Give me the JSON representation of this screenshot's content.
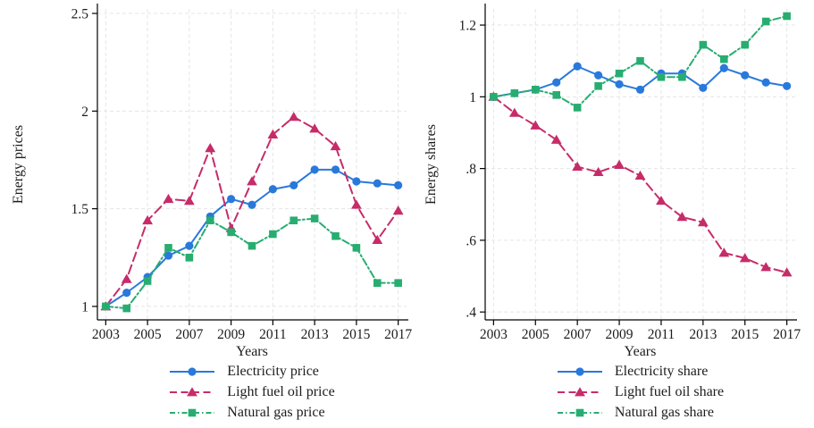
{
  "figure": {
    "colors": {
      "electricity_blue": "#2979DB",
      "fuel_oil_crimson": "#C62C69",
      "natural_gas_green": "#28AD71",
      "grid": "#E5E5E5",
      "axis": "#000000",
      "text": "#1C1C1C",
      "background": "#FFFFFF"
    }
  },
  "chart_data": [
    {
      "type": "line",
      "panel": "left",
      "title": "",
      "xlabel": "Years",
      "ylabel": "Energy prices",
      "x": [
        2003,
        2004,
        2005,
        2006,
        2007,
        2008,
        2009,
        2010,
        2011,
        2012,
        2013,
        2014,
        2015,
        2016,
        2017
      ],
      "xticks": [
        2003,
        2005,
        2007,
        2009,
        2011,
        2013,
        2015,
        2017
      ],
      "xtick_labels": [
        "2003",
        "2005",
        "2007",
        "2009",
        "2011",
        "2013",
        "2015",
        "2017"
      ],
      "xlim": [
        2002.6,
        2017.4
      ],
      "ylim": [
        0.931,
        2.523
      ],
      "yticks": [
        1,
        1.5,
        2,
        2.5
      ],
      "ytick_labels": [
        "1",
        "1.5",
        "2",
        "2.5"
      ],
      "grid": true,
      "legend_position": "bottom",
      "series": [
        {
          "name": "Electricity price",
          "color": "#2979DB",
          "marker": "circle",
          "dash": "solid",
          "values": [
            1.0,
            1.07,
            1.15,
            1.26,
            1.31,
            1.46,
            1.55,
            1.52,
            1.6,
            1.62,
            1.7,
            1.7,
            1.64,
            1.63,
            1.62
          ]
        },
        {
          "name": "Light fuel oil price",
          "color": "#C62C69",
          "marker": "triangle",
          "dash": "dashed",
          "values": [
            1.0,
            1.14,
            1.44,
            1.55,
            1.54,
            1.81,
            1.4,
            1.64,
            1.88,
            1.97,
            1.91,
            1.82,
            1.52,
            1.34,
            1.49
          ]
        },
        {
          "name": "Natural gas price",
          "color": "#28AD71",
          "marker": "square",
          "dash": "dashdot",
          "values": [
            1.0,
            0.99,
            1.13,
            1.3,
            1.25,
            1.44,
            1.38,
            1.31,
            1.37,
            1.44,
            1.45,
            1.36,
            1.3,
            1.12,
            1.12
          ]
        }
      ]
    },
    {
      "type": "line",
      "panel": "right",
      "title": "",
      "xlabel": "Years",
      "ylabel": "Energy shares",
      "x": [
        2003,
        2004,
        2005,
        2006,
        2007,
        2008,
        2009,
        2010,
        2011,
        2012,
        2013,
        2014,
        2015,
        2016,
        2017
      ],
      "xticks": [
        2003,
        2005,
        2007,
        2009,
        2011,
        2013,
        2015,
        2017
      ],
      "xtick_labels": [
        "2003",
        "2005",
        "2007",
        "2009",
        "2011",
        "2013",
        "2015",
        "2017"
      ],
      "xlim": [
        2002.6,
        2017.4
      ],
      "ylim": [
        0.378,
        1.245
      ],
      "yticks": [
        0.4,
        0.6,
        0.8,
        1.0,
        1.2
      ],
      "ytick_labels": [
        ".4",
        ".6",
        ".8",
        "1",
        "1.2"
      ],
      "grid": true,
      "legend_position": "bottom",
      "series": [
        {
          "name": "Electricity share",
          "color": "#2979DB",
          "marker": "circle",
          "dash": "solid",
          "values": [
            1.0,
            1.01,
            1.02,
            1.04,
            1.085,
            1.06,
            1.035,
            1.02,
            1.065,
            1.065,
            1.025,
            1.08,
            1.06,
            1.04,
            1.03
          ]
        },
        {
          "name": "Light fuel oil share",
          "color": "#C62C69",
          "marker": "triangle",
          "dash": "dashed",
          "values": [
            1.0,
            0.955,
            0.92,
            0.88,
            0.805,
            0.79,
            0.81,
            0.78,
            0.71,
            0.665,
            0.65,
            0.565,
            0.55,
            0.525,
            0.51
          ]
        },
        {
          "name": "Natural gas share",
          "color": "#28AD71",
          "marker": "square",
          "dash": "dashdot",
          "values": [
            1.0,
            1.01,
            1.02,
            1.005,
            0.97,
            1.03,
            1.065,
            1.1,
            1.055,
            1.055,
            1.145,
            1.105,
            1.145,
            1.21,
            1.225
          ]
        }
      ]
    }
  ]
}
